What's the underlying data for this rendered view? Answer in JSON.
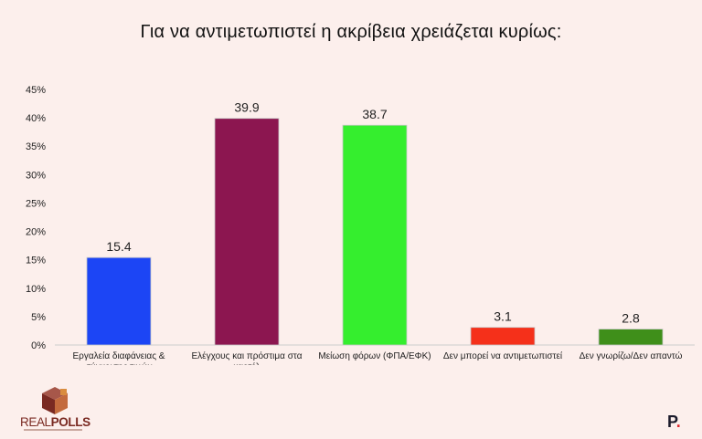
{
  "title": "Για να αντιμετωπιστεί η ακρίβεια χρειάζεται κυρίως:",
  "chart_data": {
    "type": "bar",
    "categories": [
      [
        "Εργαλεία διαφάνειας &",
        "σύγκρισης τιμών"
      ],
      [
        "Ελέγχους και πρόστιμα στα",
        "καρτέλ"
      ],
      [
        "Μείωση φόρων (ΦΠΑ/ΕΦΚ)"
      ],
      [
        "Δεν μπορεί να αντιμετωπιστεί"
      ],
      [
        "Δεν γνωρίζω/Δεν απαντώ"
      ]
    ],
    "values": [
      15.4,
      39.9,
      38.7,
      3.1,
      2.8
    ],
    "data_labels": [
      "15.4",
      "39.9",
      "38.7",
      "3.1",
      "2.8"
    ],
    "colors": [
      "#1c45f5",
      "#8c1650",
      "#35ee2e",
      "#f5301a",
      "#3f8f1a"
    ],
    "ylim": [
      0,
      45
    ],
    "yticks": [
      "0%",
      "5%",
      "10%",
      "15%",
      "20%",
      "25%",
      "30%",
      "35%",
      "40%",
      "45%"
    ],
    "grid": false,
    "legend": "none"
  },
  "logos": {
    "left_name_a": "REAL",
    "left_name_b": "POLLS",
    "right_mark": "P",
    "right_dot": "."
  }
}
